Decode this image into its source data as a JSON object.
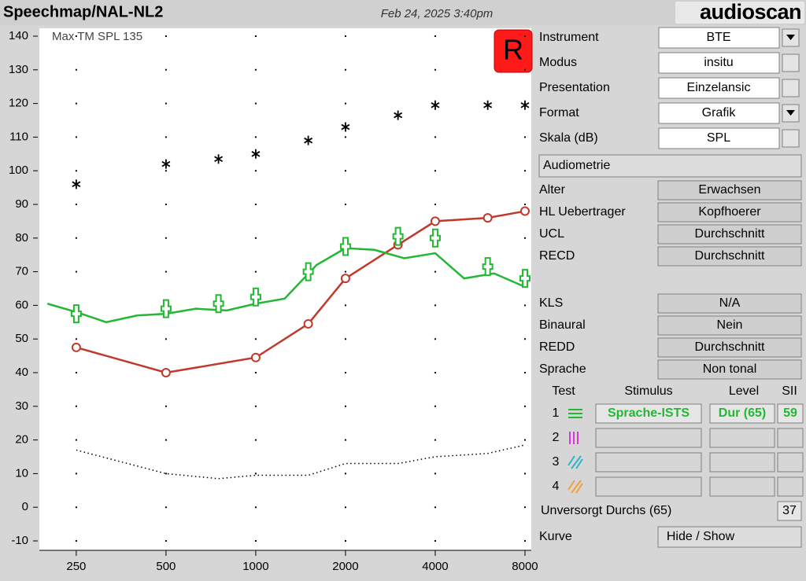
{
  "header": {
    "title": "Speechmap/NAL-NL2",
    "date": "Feb 24, 2025 3:40pm",
    "logo": "audioscan"
  },
  "chart_data": {
    "type": "line",
    "xscale": "log",
    "annotation": "Max TM SPL 135",
    "ear": "R",
    "xlim": [
      188,
      8400
    ],
    "xticks": [
      250,
      500,
      1000,
      2000,
      4000,
      8000
    ],
    "ylim": [
      -10,
      140
    ],
    "yticks": [
      -10,
      0,
      10,
      20,
      30,
      40,
      50,
      60,
      70,
      80,
      90,
      100,
      110,
      120,
      130,
      140
    ],
    "grid": "dots",
    "series": [
      {
        "color": "#000000",
        "line": "none",
        "marker": "asterisk",
        "x": [
          250,
          500,
          750,
          1000,
          1500,
          2000,
          3000,
          4000,
          6000,
          8000
        ],
        "values": [
          96,
          102,
          103.5,
          105,
          109,
          113,
          116.5,
          119.5,
          119.5,
          119.5
        ]
      },
      {
        "color": "#c0392b",
        "line": "solid",
        "marker": "circle",
        "x": [
          250,
          500,
          1000,
          1500,
          2000,
          3000,
          4000,
          6000,
          8000
        ],
        "values": [
          47.5,
          40,
          44.5,
          54.5,
          68,
          78,
          85,
          86,
          88
        ]
      },
      {
        "color": "#22b833",
        "line": "solid",
        "marker": "none",
        "x": [
          200,
          250,
          315,
          400,
          500,
          630,
          800,
          1000,
          1250,
          1600,
          2000,
          2500,
          3150,
          4000,
          5000,
          6300,
          8000
        ],
        "values": [
          60.5,
          58,
          55,
          57,
          57.5,
          59,
          58.5,
          60.5,
          62,
          72,
          77,
          76.5,
          74,
          75.5,
          68,
          69.5,
          65.5
        ]
      },
      {
        "color": "#22b833",
        "line": "none",
        "marker": "speech",
        "x": [
          250,
          500,
          750,
          1000,
          1500,
          2000,
          3000,
          4000,
          6000,
          8000
        ],
        "values": [
          57.5,
          59,
          60.5,
          62.5,
          70,
          77.5,
          80.5,
          80,
          71.5,
          68
        ]
      },
      {
        "color": "#000000",
        "line": "dotted",
        "marker": "none",
        "x": [
          250,
          500,
          750,
          1000,
          1500,
          2000,
          3000,
          4000,
          6000,
          8000
        ],
        "values": [
          17,
          10,
          8.5,
          9.5,
          9.5,
          13,
          13,
          15,
          16,
          18.5
        ]
      }
    ]
  },
  "settings": [
    {
      "label": "Instrument",
      "value": "BTE",
      "control": "dropdown"
    },
    {
      "label": "Modus",
      "value": "insitu",
      "control": "button"
    },
    {
      "label": "Presentation",
      "value": "Einzelansic",
      "control": "button"
    },
    {
      "label": "Format",
      "value": "Grafik",
      "control": "dropdown"
    },
    {
      "label": "Skala (dB)",
      "value": "SPL",
      "control": "button"
    }
  ],
  "audiometry_button": "Audiometrie",
  "audiometry": [
    {
      "label": "Alter",
      "value": "Erwachsen"
    },
    {
      "label": "HL Uebertrager",
      "value": "Kopfhoerer"
    },
    {
      "label": "UCL",
      "value": "Durchschnitt"
    },
    {
      "label": "RECD",
      "value": "Durchschnitt"
    }
  ],
  "options": [
    {
      "label": "KLS",
      "value": "N/A"
    },
    {
      "label": "Binaural",
      "value": "Nein"
    },
    {
      "label": "REDD",
      "value": "Durchschnitt"
    },
    {
      "label": "Sprache",
      "value": "Non tonal"
    }
  ],
  "tests": {
    "header": [
      "Test",
      "Stimulus",
      "Level",
      "SII"
    ],
    "rows": [
      {
        "number": "1",
        "stimulus": "Sprache-ISTS",
        "level": "Dur (65)",
        "sii": 59
      },
      {
        "number": "2"
      },
      {
        "number": "3"
      },
      {
        "number": "4"
      }
    ]
  },
  "unaided": {
    "label": "Unversorgt Durchs (65)",
    "value": 37
  },
  "curve": {
    "label": "Kurve",
    "button": "Hide / Show"
  }
}
